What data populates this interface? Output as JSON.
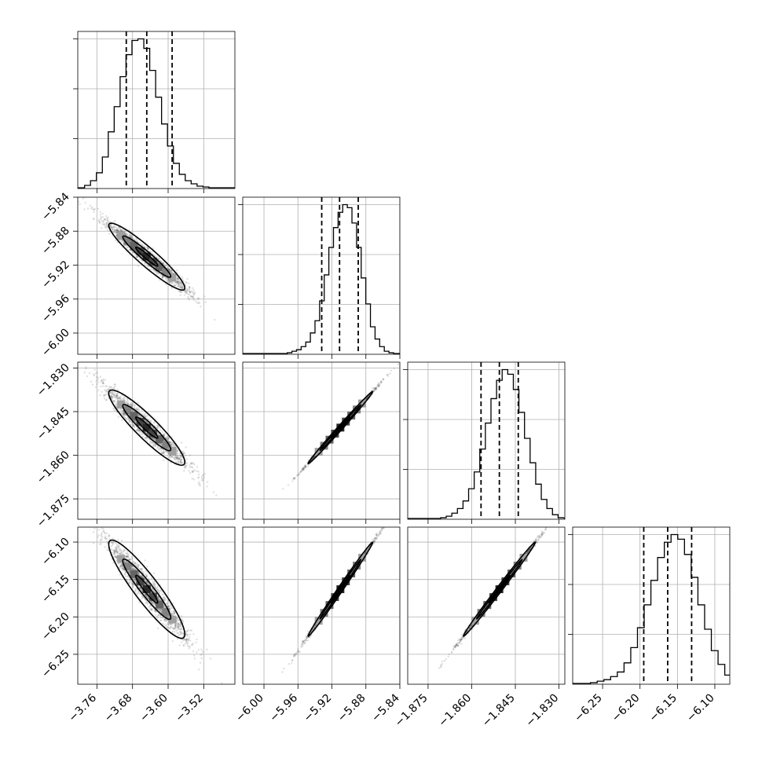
{
  "chart_data": {
    "type": "scatter",
    "kind": "corner-plot",
    "grid": true,
    "colors": {
      "line": "#000000",
      "points": "#666666",
      "grid": "#b0b0b0"
    },
    "parameters": [
      {
        "center": -3.648,
        "spread": 0.045,
        "range": [
          -3.803,
          -3.45
        ],
        "ticks": [
          -3.76,
          -3.68,
          -3.6,
          -3.52
        ],
        "tick_labels": [
          "−3.76",
          "−3.68",
          "−3.60",
          "−3.52"
        ],
        "quantiles": [
          -3.694,
          -3.648,
          -3.591
        ]
      },
      {
        "center": -5.91,
        "spread": 0.02,
        "range": [
          -6.025,
          -5.84
        ],
        "ticks": [
          -6.0,
          -5.96,
          -5.92,
          -5.88,
          -5.84
        ],
        "tick_labels": [
          "−6.00",
          "−5.96",
          "−5.92",
          "−5.88",
          "−5.84"
        ],
        "quantiles": [
          -5.932,
          -5.911,
          -5.889
        ]
      },
      {
        "center": -1.8505,
        "spread": 0.0065,
        "range": [
          -1.882,
          -1.828
        ],
        "ticks": [
          -1.875,
          -1.86,
          -1.845,
          -1.83
        ],
        "tick_labels": [
          "−1.875",
          "−1.860",
          "−1.845",
          "−1.830"
        ],
        "quantiles": [
          -1.8568,
          -1.8505,
          -1.844
        ]
      },
      {
        "center": -6.163,
        "spread": 0.033,
        "range": [
          -6.29,
          -6.08
        ],
        "ticks": [
          -6.25,
          -6.2,
          -6.15,
          -6.1
        ],
        "tick_labels": [
          "−6.25",
          "−6.20",
          "−6.15",
          "−6.10"
        ],
        "quantiles": [
          -6.195,
          -6.163,
          -6.131
        ]
      }
    ],
    "correlations": [
      [
        1.0,
        -0.97,
        -0.96,
        -0.96
      ],
      [
        -0.97,
        1.0,
        0.998,
        0.998
      ],
      [
        -0.96,
        0.998,
        1.0,
        0.998
      ],
      [
        -0.96,
        0.998,
        0.998,
        1.0
      ]
    ],
    "hist_values": [
      [
        0.5,
        2,
        5,
        10,
        20,
        36,
        52,
        71,
        85,
        94,
        95,
        89,
        75,
        58,
        41,
        27,
        16,
        9,
        5,
        3,
        1.5,
        1,
        0.5
      ],
      [
        0.5,
        1,
        2,
        3,
        5,
        8,
        14,
        22,
        35,
        52,
        70,
        83,
        93,
        98,
        96,
        86,
        70,
        50,
        33,
        18,
        10,
        5,
        2,
        1,
        0.5
      ],
      [
        0.5,
        1,
        2,
        4,
        7,
        12,
        20,
        31,
        46,
        63,
        79,
        91,
        98,
        95,
        85,
        70,
        53,
        37,
        23,
        13,
        7,
        3,
        1
      ],
      [
        0.5,
        1,
        2,
        3,
        5,
        8,
        14,
        24,
        37,
        52,
        68,
        83,
        93,
        98,
        95,
        85,
        70,
        52,
        36,
        22,
        13,
        6,
        3,
        1,
        0.5
      ]
    ]
  }
}
